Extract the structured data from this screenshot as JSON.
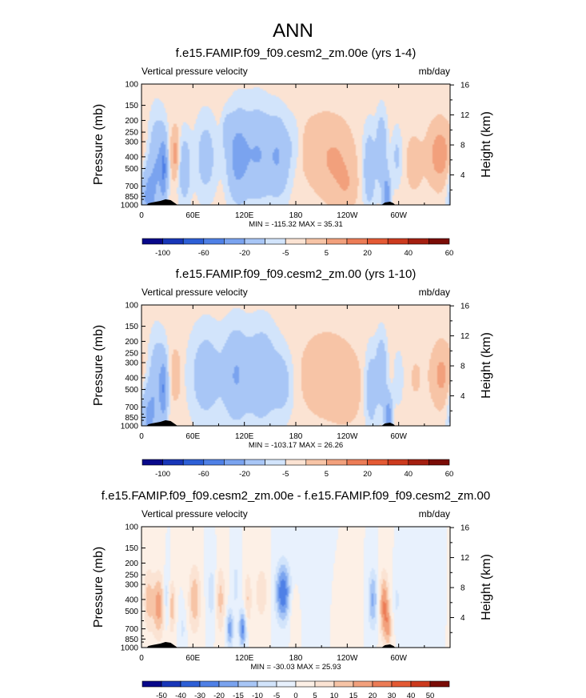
{
  "figure_title": "ANN",
  "chart_data": [
    {
      "type": "heatmap",
      "title": "f.e15.FAMIP.f09_f09.cesm2_zm.00e (yrs 1-4)",
      "left_label": "Vertical pressure velocity",
      "units": "mb/day",
      "ylabel": "Pressure (mb)",
      "y2label": "Height (km)",
      "pressure_ticks": [
        "100",
        "150",
        "200",
        "250",
        "300",
        "400",
        "500",
        "700",
        "850",
        "1000"
      ],
      "height_ticks": [
        "16",
        "12",
        "8",
        "4"
      ],
      "x_ticks": [
        "0",
        "60E",
        "120E",
        "180",
        "120W",
        "60W"
      ],
      "min_label": "MIN = -115.32",
      "max_label": "MAX =  35.31",
      "colorbar_labels": [
        "-100",
        "-60",
        "-20",
        "-5",
        "5",
        "20",
        "40",
        "60"
      ],
      "colorbar_colors": [
        "#08088a",
        "#1836b8",
        "#2d5fd6",
        "#4f80e6",
        "#7aa3ef",
        "#a8c6f6",
        "#d2e4fb",
        "#fbe3d3",
        "#f7c4a6",
        "#f2a07c",
        "#ec7c56",
        "#e45a34",
        "#cc3a1e",
        "#a41f10",
        "#7a0c06"
      ],
      "lon_range": [
        0,
        360
      ],
      "pressure_range": [
        100,
        1000
      ],
      "blobs": [
        {
          "lon": 8,
          "p": 850,
          "w": 6,
          "h": 0.55,
          "v": -70
        },
        {
          "lon": 18,
          "p": 450,
          "w": 6,
          "h": 0.8,
          "v": -55
        },
        {
          "lon": 26,
          "p": 500,
          "w": 3,
          "h": 0.6,
          "v": -90
        },
        {
          "lon": 40,
          "p": 380,
          "w": 4,
          "h": 0.45,
          "v": 30
        },
        {
          "lon": 50,
          "p": 500,
          "w": 5,
          "h": 0.6,
          "v": -45
        },
        {
          "lon": 75,
          "p": 400,
          "w": 8,
          "h": 0.7,
          "v": -35
        },
        {
          "lon": 100,
          "p": 250,
          "w": 4,
          "h": 0.35,
          "v": -30
        },
        {
          "lon": 112,
          "p": 400,
          "w": 8,
          "h": 0.75,
          "v": -75
        },
        {
          "lon": 135,
          "p": 380,
          "w": 12,
          "h": 0.8,
          "v": -60
        },
        {
          "lon": 160,
          "p": 400,
          "w": 9,
          "h": 0.7,
          "v": -55
        },
        {
          "lon": 178,
          "p": 300,
          "w": 5,
          "h": 0.5,
          "v": -12
        },
        {
          "lon": 205,
          "p": 350,
          "w": 18,
          "h": 0.75,
          "v": 10
        },
        {
          "lon": 228,
          "p": 450,
          "w": 14,
          "h": 0.7,
          "v": 18
        },
        {
          "lon": 240,
          "p": 700,
          "w": 8,
          "h": 0.4,
          "v": 12
        },
        {
          "lon": 266,
          "p": 500,
          "w": 5,
          "h": 0.7,
          "v": -45
        },
        {
          "lon": 280,
          "p": 350,
          "w": 4,
          "h": 0.6,
          "v": -60
        },
        {
          "lon": 286,
          "p": 850,
          "w": 3,
          "h": 0.4,
          "v": -95
        },
        {
          "lon": 298,
          "p": 400,
          "w": 4,
          "h": 0.5,
          "v": -25
        },
        {
          "lon": 318,
          "p": 450,
          "w": 8,
          "h": 0.6,
          "v": 10
        },
        {
          "lon": 348,
          "p": 380,
          "w": 9,
          "h": 0.55,
          "v": 32
        }
      ]
    },
    {
      "type": "heatmap",
      "title": "f.e15.FAMIP.f09_f09.cesm2_zm.00 (yrs 1-10)",
      "left_label": "Vertical pressure velocity",
      "units": "mb/day",
      "ylabel": "Pressure (mb)",
      "y2label": "Height (km)",
      "pressure_ticks": [
        "100",
        "150",
        "200",
        "250",
        "300",
        "400",
        "500",
        "700",
        "850",
        "1000"
      ],
      "height_ticks": [
        "16",
        "12",
        "8",
        "4"
      ],
      "x_ticks": [
        "0",
        "60E",
        "120E",
        "180",
        "120W",
        "60W"
      ],
      "min_label": "MIN = -103.17",
      "max_label": "MAX =  26.26",
      "colorbar_labels": [
        "-100",
        "-60",
        "-20",
        "-5",
        "5",
        "20",
        "40",
        "60"
      ],
      "colorbar_colors": [
        "#08088a",
        "#1836b8",
        "#2d5fd6",
        "#4f80e6",
        "#7aa3ef",
        "#a8c6f6",
        "#d2e4fb",
        "#fbe3d3",
        "#f7c4a6",
        "#f2a07c",
        "#ec7c56",
        "#e45a34",
        "#cc3a1e",
        "#a41f10",
        "#7a0c06"
      ],
      "lon_range": [
        0,
        360
      ],
      "pressure_range": [
        100,
        1000
      ],
      "blobs": [
        {
          "lon": 8,
          "p": 850,
          "w": 6,
          "h": 0.55,
          "v": -65
        },
        {
          "lon": 18,
          "p": 450,
          "w": 6,
          "h": 0.8,
          "v": -50
        },
        {
          "lon": 26,
          "p": 500,
          "w": 3,
          "h": 0.6,
          "v": -80
        },
        {
          "lon": 40,
          "p": 380,
          "w": 4,
          "h": 0.45,
          "v": 18
        },
        {
          "lon": 75,
          "p": 380,
          "w": 12,
          "h": 0.8,
          "v": -40
        },
        {
          "lon": 110,
          "p": 380,
          "w": 10,
          "h": 0.8,
          "v": -60
        },
        {
          "lon": 140,
          "p": 380,
          "w": 12,
          "h": 0.8,
          "v": -55
        },
        {
          "lon": 165,
          "p": 450,
          "w": 8,
          "h": 0.6,
          "v": -30
        },
        {
          "lon": 215,
          "p": 380,
          "w": 22,
          "h": 0.8,
          "v": 14
        },
        {
          "lon": 240,
          "p": 500,
          "w": 12,
          "h": 0.6,
          "v": 10
        },
        {
          "lon": 268,
          "p": 500,
          "w": 5,
          "h": 0.7,
          "v": -40
        },
        {
          "lon": 280,
          "p": 350,
          "w": 4,
          "h": 0.6,
          "v": -55
        },
        {
          "lon": 288,
          "p": 850,
          "w": 3,
          "h": 0.4,
          "v": -90
        },
        {
          "lon": 300,
          "p": 400,
          "w": 4,
          "h": 0.5,
          "v": -15
        },
        {
          "lon": 320,
          "p": 400,
          "w": 8,
          "h": 0.6,
          "v": 6
        },
        {
          "lon": 350,
          "p": 380,
          "w": 8,
          "h": 0.55,
          "v": 25
        }
      ]
    },
    {
      "type": "heatmap",
      "title": "f.e15.FAMIP.f09_f09.cesm2_zm.00e - f.e15.FAMIP.f09_f09.cesm2_zm.00",
      "left_label": "Vertical pressure velocity",
      "units": "mb/day",
      "ylabel": "Pressure (mb)",
      "y2label": "Height (km)",
      "pressure_ticks": [
        "100",
        "150",
        "200",
        "250",
        "300",
        "400",
        "500",
        "700",
        "850",
        "1000"
      ],
      "height_ticks": [
        "16",
        "12",
        "8",
        "4"
      ],
      "x_ticks": [
        "0",
        "60E",
        "120E",
        "180",
        "120W",
        "60W"
      ],
      "min_label": "MIN = -30.03",
      "max_label": "MAX =  25.93",
      "colorbar_labels": [
        "-50",
        "-40",
        "-30",
        "-20",
        "-15",
        "-10",
        "-5",
        "0",
        "5",
        "10",
        "15",
        "20",
        "30",
        "40",
        "50"
      ],
      "colorbar_colors": [
        "#08088a",
        "#1836b8",
        "#2d5fd6",
        "#4f80e6",
        "#7aa3ef",
        "#a8c6f6",
        "#d2e4fb",
        "#e8f1fd",
        "#fdf0e6",
        "#fbe3d3",
        "#f7c4a6",
        "#f2a07c",
        "#ec7c56",
        "#e45a34",
        "#cc3a1e",
        "#7a0c06"
      ],
      "lon_range": [
        0,
        360
      ],
      "pressure_range": [
        100,
        1000
      ],
      "blobs": [
        {
          "lon": 8,
          "p": 400,
          "w": 4,
          "h": 0.6,
          "v": 12
        },
        {
          "lon": 20,
          "p": 450,
          "w": 5,
          "h": 0.6,
          "v": 18
        },
        {
          "lon": 30,
          "p": 400,
          "w": 3,
          "h": 0.5,
          "v": -12
        },
        {
          "lon": 35,
          "p": 450,
          "w": 3,
          "h": 0.5,
          "v": 15
        },
        {
          "lon": 48,
          "p": 700,
          "w": 3,
          "h": 0.4,
          "v": -6
        },
        {
          "lon": 62,
          "p": 400,
          "w": 5,
          "h": 0.65,
          "v": 14
        },
        {
          "lon": 82,
          "p": 350,
          "w": 4,
          "h": 0.6,
          "v": -8
        },
        {
          "lon": 92,
          "p": 400,
          "w": 4,
          "h": 0.65,
          "v": 12
        },
        {
          "lon": 103,
          "p": 700,
          "w": 3,
          "h": 0.35,
          "v": -18
        },
        {
          "lon": 110,
          "p": 300,
          "w": 3,
          "h": 0.5,
          "v": -7
        },
        {
          "lon": 118,
          "p": 700,
          "w": 3,
          "h": 0.35,
          "v": -22
        },
        {
          "lon": 124,
          "p": 400,
          "w": 3,
          "h": 0.55,
          "v": 10
        },
        {
          "lon": 140,
          "p": 350,
          "w": 6,
          "h": 0.6,
          "v": 8
        },
        {
          "lon": 165,
          "p": 350,
          "w": 6,
          "h": 0.55,
          "v": -25
        },
        {
          "lon": 178,
          "p": 500,
          "w": 4,
          "h": 0.5,
          "v": 6
        },
        {
          "lon": 200,
          "p": 300,
          "w": 12,
          "h": 0.7,
          "v": -3
        },
        {
          "lon": 240,
          "p": 400,
          "w": 10,
          "h": 0.6,
          "v": 3
        },
        {
          "lon": 270,
          "p": 400,
          "w": 4,
          "h": 0.55,
          "v": -16
        },
        {
          "lon": 283,
          "p": 450,
          "w": 4,
          "h": 0.6,
          "v": 20
        },
        {
          "lon": 288,
          "p": 700,
          "w": 3,
          "h": 0.4,
          "v": 12
        },
        {
          "lon": 298,
          "p": 400,
          "w": 3,
          "h": 0.45,
          "v": -6
        },
        {
          "lon": 330,
          "p": 350,
          "w": 10,
          "h": 0.6,
          "v": -3
        }
      ]
    }
  ]
}
